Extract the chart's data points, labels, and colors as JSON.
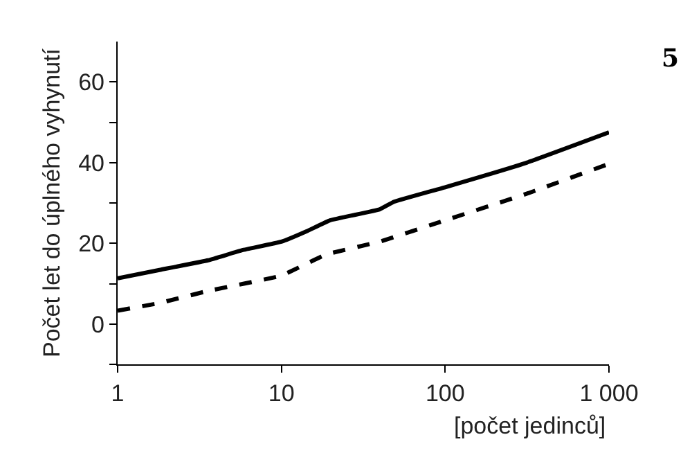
{
  "chart_data": {
    "type": "line",
    "xlabel": "[počet jedinců]",
    "ylabel": "Počet let do úplného vyhynutí",
    "annotations": [
      "5"
    ],
    "log": "x",
    "legend": false,
    "marker": "none",
    "xlim": [
      1,
      1000
    ],
    "xticks": [
      1,
      10,
      100,
      {
        "value": 1000,
        "label": "1 000"
      }
    ],
    "ylim": [
      -10,
      70
    ],
    "yticks": [
      {
        "value": -10,
        "label": null
      },
      0,
      {
        "value": 10,
        "label": null
      },
      20,
      {
        "value": 30,
        "label": null
      },
      40,
      {
        "value": 50,
        "label": null
      },
      60
    ],
    "series": [
      {
        "color": "#000000",
        "line_style": "solid",
        "x": [
          1,
          1.8,
          3.57,
          5.77,
          10,
          14.3,
          19.8,
          39.7,
          48.7,
          100,
          310,
          1000
        ],
        "values": [
          11.3,
          13.4,
          15.8,
          18.3,
          20.4,
          23,
          25.7,
          28.4,
          30.3,
          33.9,
          39.9,
          47.5
        ]
      },
      {
        "color": "#000000",
        "line_style": "dashed",
        "x": [
          1,
          1.8,
          3.57,
          10,
          18.7,
          39.7,
          100,
          310,
          1000
        ],
        "values": [
          3.3,
          5.2,
          8.2,
          12.0,
          17.2,
          20.4,
          25.7,
          32.2,
          39.7
        ]
      }
    ]
  }
}
